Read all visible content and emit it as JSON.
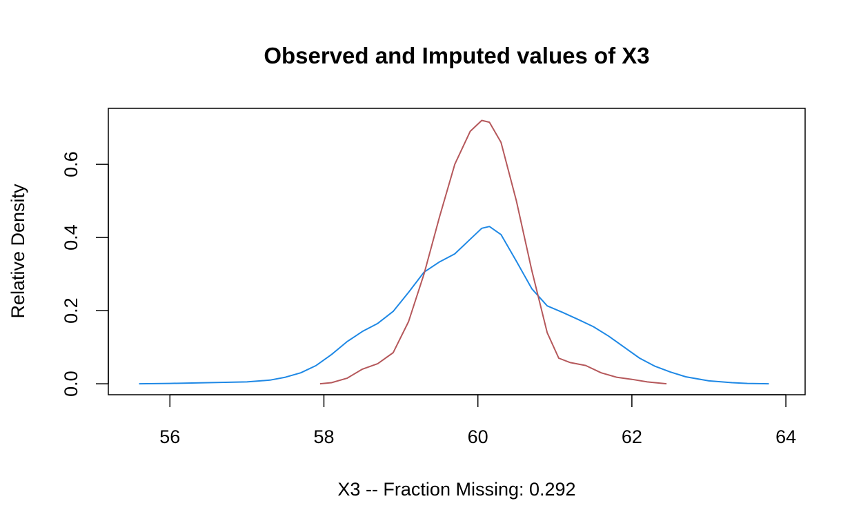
{
  "chart_data": {
    "type": "line",
    "title": "Observed and Imputed values of X3",
    "xlabel": "X3   --  Fraction Missing: 0.292",
    "ylabel": "Relative Density",
    "xlim": [
      55.2,
      64.25
    ],
    "ylim": [
      -0.03,
      0.753
    ],
    "xticks": [
      56,
      58,
      60,
      62,
      64
    ],
    "yticks": [
      0.0,
      0.2,
      0.4,
      0.6
    ],
    "xtick_labels": [
      "56",
      "58",
      "60",
      "62",
      "64"
    ],
    "ytick_labels": [
      "0.0",
      "0.2",
      "0.4",
      "0.6"
    ],
    "grid": false,
    "legend": "none",
    "series": [
      {
        "color": "#1e88e5",
        "x": [
          55.6,
          56.0,
          56.5,
          57.0,
          57.3,
          57.5,
          57.7,
          57.9,
          58.1,
          58.3,
          58.5,
          58.7,
          58.9,
          59.1,
          59.3,
          59.5,
          59.7,
          59.9,
          60.05,
          60.15,
          60.3,
          60.5,
          60.7,
          60.9,
          61.1,
          61.3,
          61.5,
          61.7,
          61.9,
          62.1,
          62.3,
          62.5,
          62.7,
          63.0,
          63.3,
          63.5,
          63.78
        ],
        "y": [
          0.0,
          0.001,
          0.003,
          0.005,
          0.01,
          0.018,
          0.03,
          0.05,
          0.08,
          0.115,
          0.143,
          0.165,
          0.198,
          0.25,
          0.305,
          0.333,
          0.355,
          0.395,
          0.425,
          0.43,
          0.408,
          0.335,
          0.26,
          0.213,
          0.195,
          0.176,
          0.156,
          0.13,
          0.1,
          0.07,
          0.048,
          0.032,
          0.019,
          0.008,
          0.003,
          0.001,
          0.0
        ]
      },
      {
        "color": "#b5585b",
        "x": [
          57.95,
          58.1,
          58.3,
          58.5,
          58.7,
          58.9,
          59.1,
          59.3,
          59.5,
          59.7,
          59.9,
          60.05,
          60.15,
          60.3,
          60.5,
          60.7,
          60.9,
          61.05,
          61.2,
          61.4,
          61.6,
          61.8,
          62.0,
          62.2,
          62.45
        ],
        "y": [
          0.0,
          0.003,
          0.015,
          0.04,
          0.055,
          0.085,
          0.17,
          0.3,
          0.455,
          0.6,
          0.69,
          0.72,
          0.715,
          0.66,
          0.5,
          0.31,
          0.14,
          0.07,
          0.058,
          0.05,
          0.03,
          0.018,
          0.012,
          0.005,
          0.0
        ]
      }
    ]
  }
}
